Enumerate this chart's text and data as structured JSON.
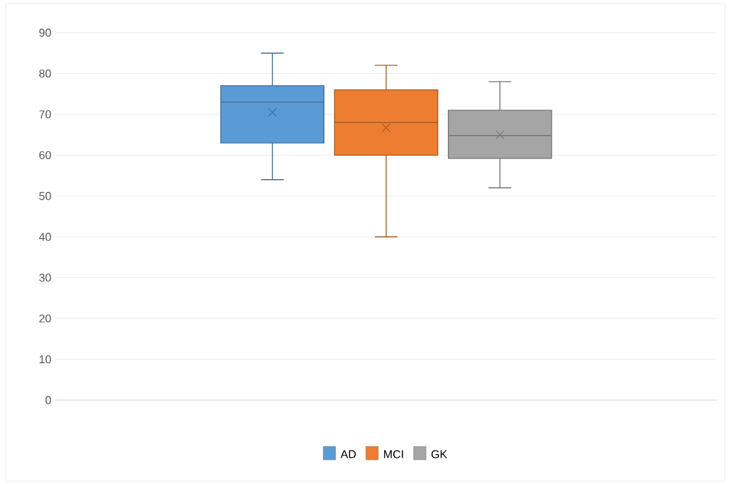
{
  "chart_data": {
    "type": "box",
    "categories": [
      null
    ],
    "series": [
      {
        "name": "AD",
        "color": "#5b9bd5",
        "boxes": [
          {
            "low": 54,
            "q1": 63,
            "median": 73,
            "q3": 77,
            "high": 85,
            "mean": 70.5
          }
        ]
      },
      {
        "name": "MCI",
        "color": "#ed7d31",
        "boxes": [
          {
            "low": 40,
            "q1": 60,
            "median": 68,
            "q3": 76,
            "high": 82,
            "mean": 66.7
          }
        ]
      },
      {
        "name": "GK",
        "color": "#a5a5a5",
        "boxes": [
          {
            "low": 52,
            "q1": 59.2,
            "median": 64.8,
            "q3": 71,
            "high": 78,
            "mean": 65
          }
        ]
      }
    ],
    "ylim": [
      0,
      90
    ],
    "yticks": [
      0,
      10,
      20,
      30,
      40,
      50,
      60,
      70,
      80,
      90
    ],
    "grid": "y",
    "legend": "bottom"
  }
}
